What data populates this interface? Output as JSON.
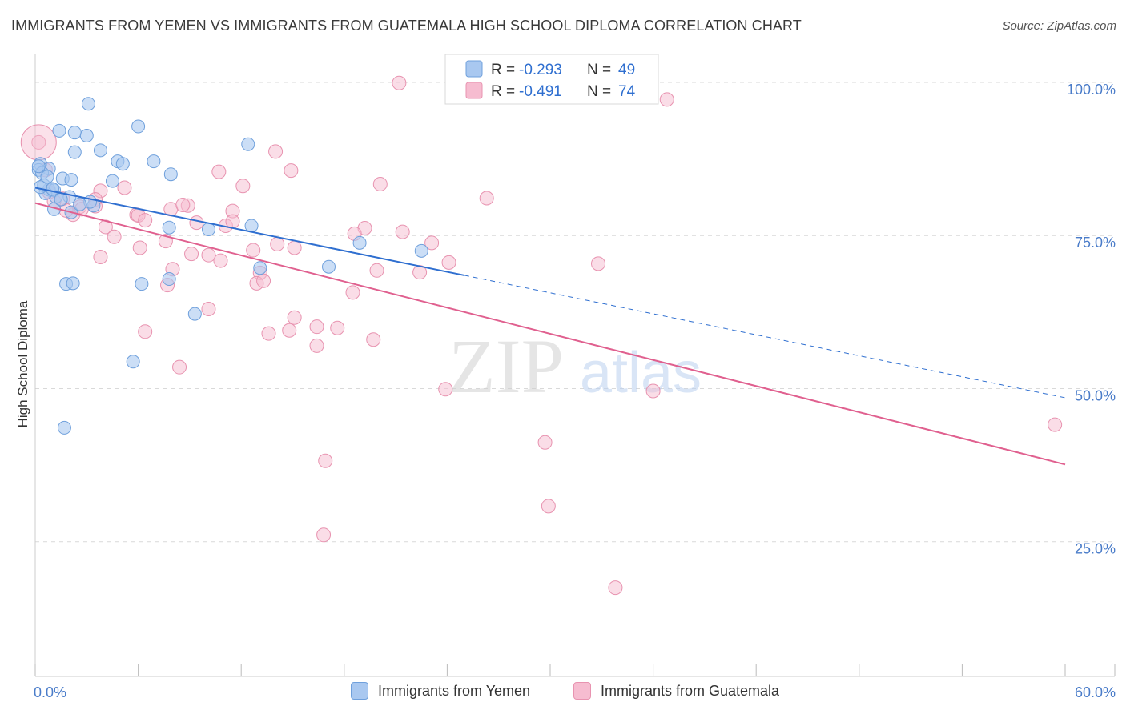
{
  "title": "IMMIGRANTS FROM YEMEN VS IMMIGRANTS FROM GUATEMALA HIGH SCHOOL DIPLOMA CORRELATION CHART",
  "source": "Source: ZipAtlas.com",
  "watermark": {
    "zip": "ZIP",
    "atlas": "atlas"
  },
  "colors": {
    "yemen_fill": "#a9c8f0",
    "yemen_stroke": "#6fa0dc",
    "yemen_line": "#2f6fd0",
    "guatemala_fill": "#f6bcd0",
    "guatemala_stroke": "#e893b0",
    "guatemala_line": "#e0608f",
    "axis_label": "#4a7cc9",
    "grid": "#d9d9d9"
  },
  "stats_legend": {
    "r_label": "R =",
    "n_label": "N =",
    "yemen": {
      "r": "-0.293",
      "n": "49"
    },
    "guatemala": {
      "r": "-0.491",
      "n": "74"
    }
  },
  "legend": {
    "yemen": "Immigrants from Yemen",
    "guatemala": "Immigrants from Guatemala"
  },
  "chart_data": {
    "type": "scatter",
    "xlabel": "",
    "ylabel": "High School Diploma",
    "xlim": [
      0,
      60
    ],
    "ylim": [
      3,
      103
    ],
    "x_tick_labels": [
      {
        "value": 0,
        "label": "0.0%"
      },
      {
        "value": 60,
        "label": "60.0%"
      }
    ],
    "y_tick_labels": [
      {
        "value": 100,
        "label": "100.0%"
      },
      {
        "value": 75,
        "label": "75.0%"
      },
      {
        "value": 50,
        "label": "50.0%"
      },
      {
        "value": 25,
        "label": "25.0%"
      }
    ],
    "series": [
      {
        "name": "Immigrants from Yemen",
        "points": [
          [
            3.1,
            96.5
          ],
          [
            1.4,
            92.1
          ],
          [
            2.3,
            91.8
          ],
          [
            3.0,
            91.3
          ],
          [
            6.0,
            92.8
          ],
          [
            12.4,
            89.9
          ],
          [
            2.3,
            88.6
          ],
          [
            3.8,
            88.9
          ],
          [
            4.8,
            87.1
          ],
          [
            5.1,
            86.7
          ],
          [
            6.9,
            87.1
          ],
          [
            0.3,
            86.7
          ],
          [
            0.2,
            85.7
          ],
          [
            0.8,
            85.9
          ],
          [
            0.4,
            85.2
          ],
          [
            1.6,
            84.3
          ],
          [
            2.1,
            84.1
          ],
          [
            4.5,
            83.9
          ],
          [
            7.9,
            85.0
          ],
          [
            0.8,
            82.5
          ],
          [
            1.1,
            82.4
          ],
          [
            1.2,
            81.3
          ],
          [
            0.6,
            81.9
          ],
          [
            2.0,
            81.3
          ],
          [
            1.1,
            79.3
          ],
          [
            2.1,
            78.8
          ],
          [
            3.4,
            79.9
          ],
          [
            3.2,
            80.5
          ],
          [
            7.8,
            76.3
          ],
          [
            10.1,
            76.0
          ],
          [
            12.6,
            76.6
          ],
          [
            18.9,
            73.8
          ],
          [
            22.5,
            72.5
          ],
          [
            1.8,
            67.1
          ],
          [
            2.2,
            67.2
          ],
          [
            6.2,
            67.1
          ],
          [
            7.8,
            67.9
          ],
          [
            13.1,
            69.7
          ],
          [
            17.1,
            69.9
          ],
          [
            9.3,
            62.2
          ],
          [
            5.7,
            54.4
          ],
          [
            1.7,
            43.6
          ],
          [
            0.2,
            86.3
          ],
          [
            0.5,
            83.2
          ],
          [
            1.0,
            82.6
          ],
          [
            0.3,
            82.9
          ],
          [
            0.7,
            84.6
          ],
          [
            1.5,
            80.9
          ],
          [
            2.6,
            80.1
          ]
        ]
      },
      {
        "name": "Immigrants from Guatemala",
        "points": [
          [
            21.2,
            99.9
          ],
          [
            36.8,
            97.2
          ],
          [
            0.2,
            90.2
          ],
          [
            14.0,
            88.7
          ],
          [
            10.7,
            85.4
          ],
          [
            14.9,
            85.6
          ],
          [
            0.6,
            85.7
          ],
          [
            12.1,
            83.1
          ],
          [
            20.1,
            83.4
          ],
          [
            26.3,
            81.1
          ],
          [
            3.8,
            82.3
          ],
          [
            5.2,
            82.8
          ],
          [
            1.6,
            81.0
          ],
          [
            3.5,
            80.9
          ],
          [
            1.1,
            80.6
          ],
          [
            2.6,
            79.7
          ],
          [
            8.9,
            79.9
          ],
          [
            5.9,
            78.4
          ],
          [
            7.9,
            79.3
          ],
          [
            11.5,
            79.0
          ],
          [
            6.0,
            78.3
          ],
          [
            2.2,
            78.4
          ],
          [
            4.1,
            76.4
          ],
          [
            9.4,
            77.1
          ],
          [
            11.1,
            76.6
          ],
          [
            11.5,
            77.3
          ],
          [
            19.2,
            76.2
          ],
          [
            21.4,
            75.6
          ],
          [
            7.6,
            74.1
          ],
          [
            14.1,
            73.6
          ],
          [
            15.1,
            73.0
          ],
          [
            23.1,
            73.8
          ],
          [
            6.1,
            73.0
          ],
          [
            9.1,
            72.0
          ],
          [
            3.8,
            71.5
          ],
          [
            10.8,
            70.9
          ],
          [
            8.0,
            69.5
          ],
          [
            19.9,
            69.3
          ],
          [
            22.4,
            69.0
          ],
          [
            32.8,
            70.4
          ],
          [
            13.1,
            68.9
          ],
          [
            12.9,
            67.2
          ],
          [
            13.3,
            67.6
          ],
          [
            7.7,
            66.9
          ],
          [
            18.5,
            65.7
          ],
          [
            10.1,
            63.0
          ],
          [
            15.1,
            61.6
          ],
          [
            16.4,
            60.1
          ],
          [
            17.6,
            59.9
          ],
          [
            14.8,
            59.5
          ],
          [
            6.4,
            59.3
          ],
          [
            13.6,
            59.0
          ],
          [
            19.7,
            58.0
          ],
          [
            16.4,
            57.0
          ],
          [
            8.4,
            53.5
          ],
          [
            23.9,
            49.9
          ],
          [
            36.0,
            49.6
          ],
          [
            59.4,
            44.1
          ],
          [
            29.7,
            41.2
          ],
          [
            16.9,
            38.2
          ],
          [
            29.9,
            30.8
          ],
          [
            16.8,
            26.1
          ],
          [
            33.8,
            17.5
          ],
          [
            8.6,
            80.0
          ],
          [
            4.6,
            74.8
          ],
          [
            12.7,
            72.6
          ],
          [
            18.6,
            75.3
          ],
          [
            6.4,
            77.5
          ],
          [
            2.7,
            79.3
          ],
          [
            0.8,
            82.1
          ],
          [
            1.8,
            79.1
          ],
          [
            3.5,
            79.8
          ],
          [
            10.1,
            71.8
          ],
          [
            24.1,
            70.6
          ]
        ]
      }
    ],
    "trendlines": [
      {
        "series": "Immigrants from Yemen",
        "x0": 0.0,
        "y0": 82.8,
        "x1": 25.0,
        "y1": 68.5,
        "dashed_to_x": 60.0,
        "dashed_to_y": 48.5
      },
      {
        "series": "Immigrants from Guatemala",
        "x0": 0.0,
        "y0": 80.3,
        "x1": 60.0,
        "y1": 37.6
      }
    ]
  }
}
